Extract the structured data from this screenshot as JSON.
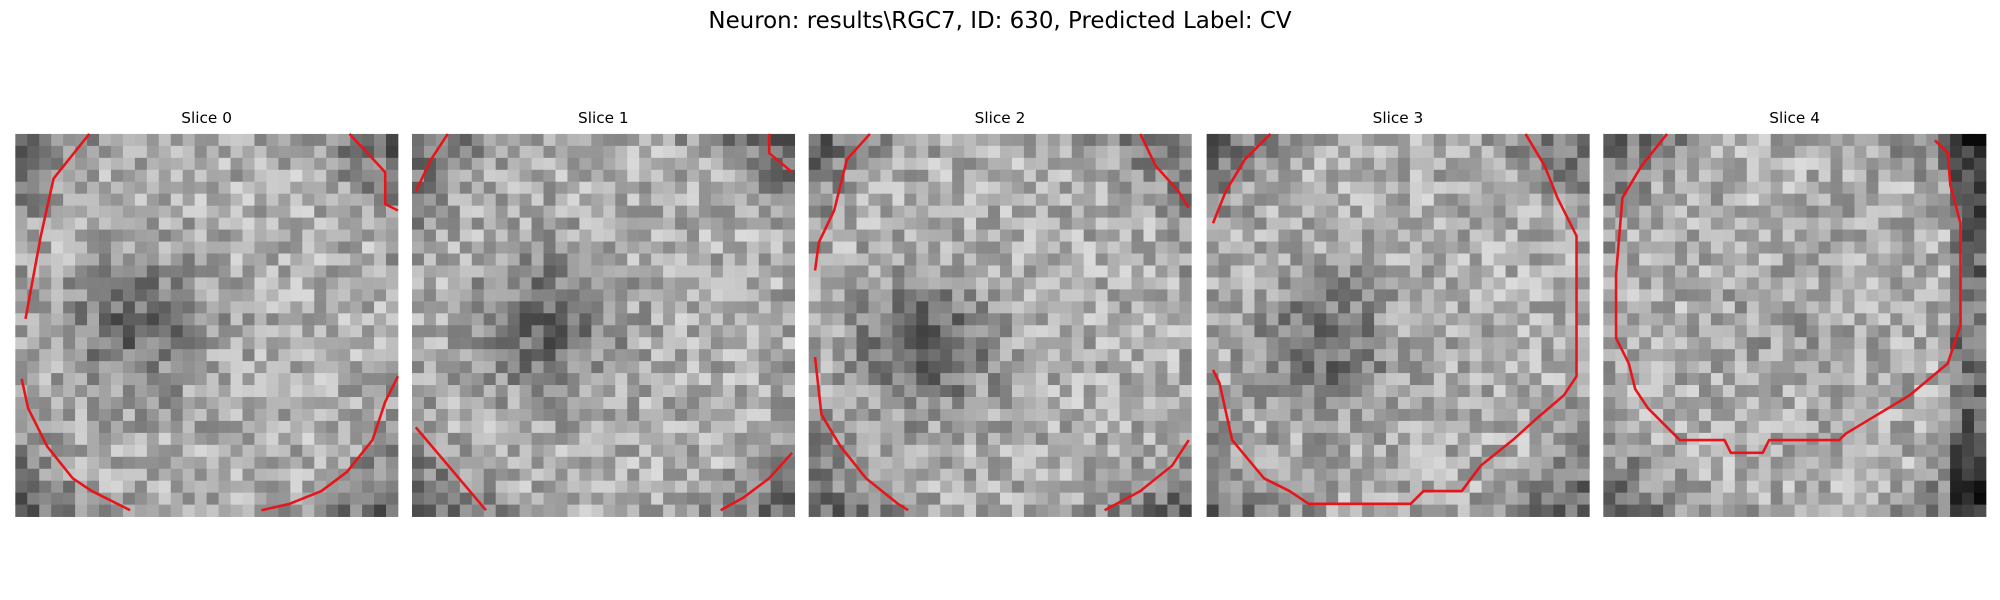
{
  "title": "Neuron: results\\RGC7, ID: 630, Predicted Label: CV",
  "panels": [
    {
      "title": "Slice 0"
    },
    {
      "title": "Slice 1"
    },
    {
      "title": "Slice 2"
    },
    {
      "title": "Slice 3"
    },
    {
      "title": "Slice 4"
    }
  ]
}
